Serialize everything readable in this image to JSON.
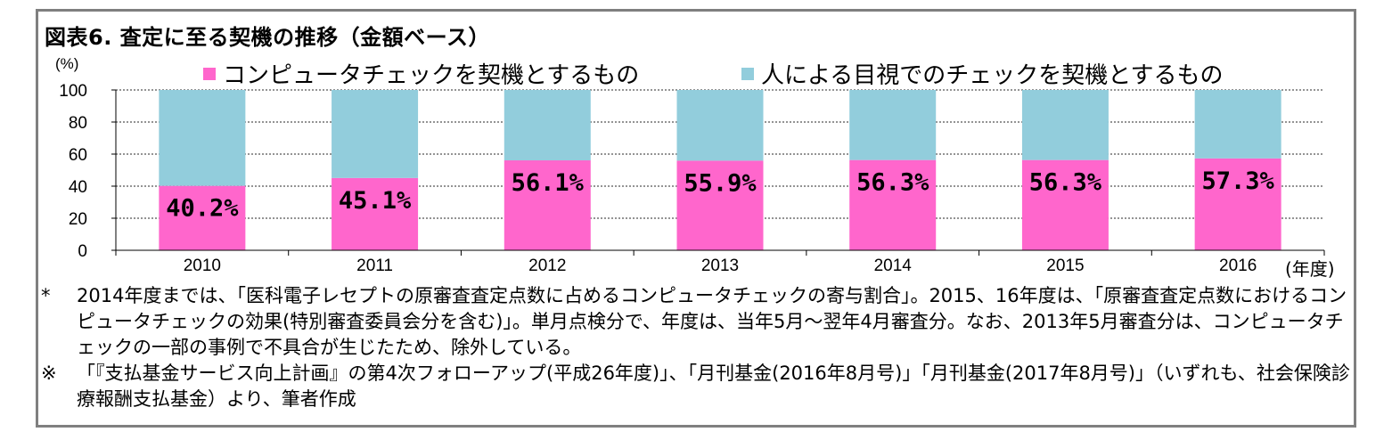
{
  "title": "図表6. 査定に至る契機の推移（金額ベース）",
  "unit_label": "(%)",
  "x_unit_label": "(年度)",
  "colors": {
    "computer": "#ff66cc",
    "human": "#92cddc",
    "frame": "#7f7f7f"
  },
  "chart_data": {
    "type": "bar",
    "stacked": true,
    "categories": [
      "2010",
      "2011",
      "2012",
      "2013",
      "2014",
      "2015",
      "2016"
    ],
    "series": [
      {
        "name": "コンピュータチェックを契機とするもの",
        "values": [
          40.2,
          45.1,
          56.1,
          55.9,
          56.3,
          56.3,
          57.3
        ]
      },
      {
        "name": "人による目視でのチェックを契機とするもの",
        "values": [
          59.8,
          54.9,
          43.9,
          44.1,
          43.7,
          43.7,
          42.7
        ]
      }
    ],
    "data_labels": [
      "40.2%",
      "45.1%",
      "56.1%",
      "55.9%",
      "56.3%",
      "56.3%",
      "57.3%"
    ],
    "y_ticks": [
      "0",
      "20",
      "40",
      "60",
      "80",
      "100"
    ],
    "ylim": [
      0,
      100
    ],
    "grid": true,
    "legend_position": "top"
  },
  "notes": [
    {
      "marker": "*",
      "text": "2014年度までは、「医科電子レセプトの原審査査定点数に占めるコンピュータチェックの寄与割合」。2015、16年度は、「原審査査定点数におけるコンピュータチェックの効果(特別審査委員会分を含む)」。単月点検分で、年度は、当年5月～翌年4月審査分。なお、2013年5月審査分は、コンピュータチェックの一部の事例で不具合が生じたため、除外している。"
    },
    {
      "marker": "※",
      "text": "「『支払基金サービス向上計画』の第4次フォローアップ(平成26年度)」、「月刊基金(2016年8月号)」「月刊基金(2017年8月号)」（いずれも、社会保険診療報酬支払基金）より、筆者作成"
    }
  ]
}
